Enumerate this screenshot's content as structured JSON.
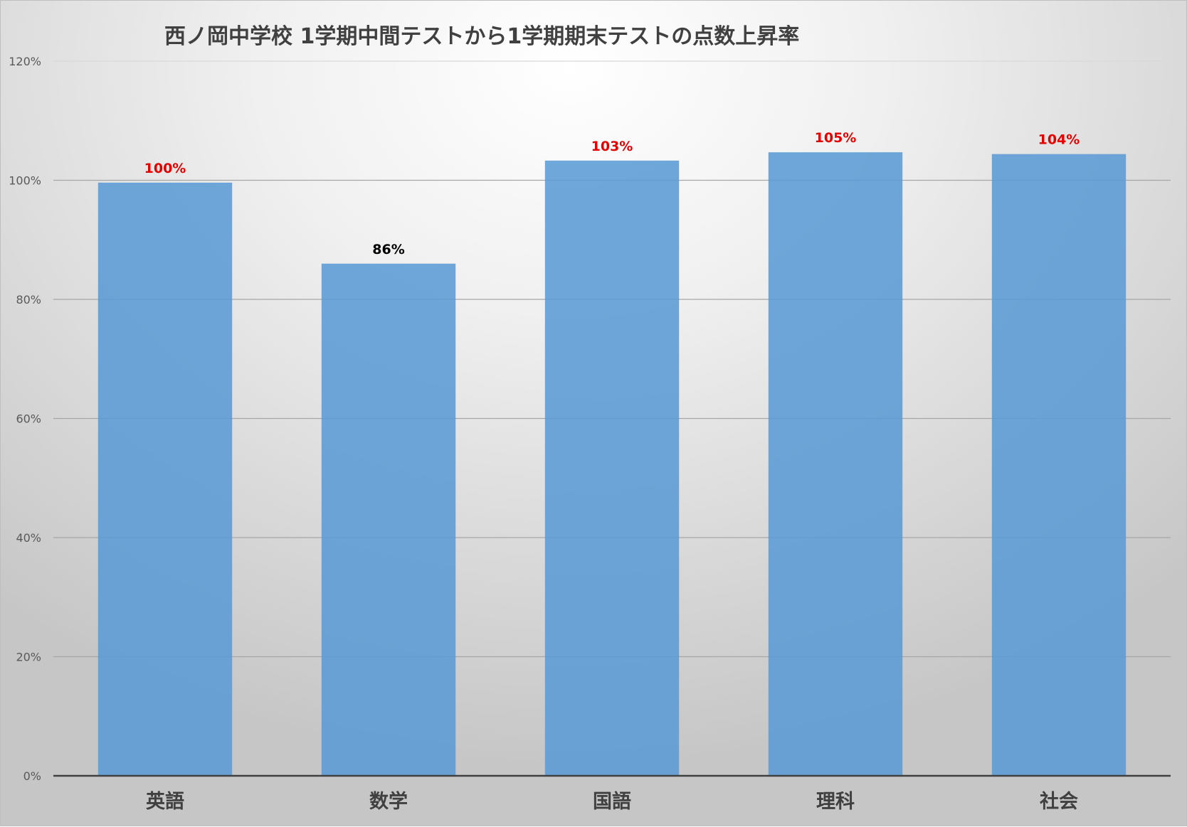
{
  "chart_data": {
    "type": "bar",
    "title": "西ノ岡中学校 1学期中間テストから1学期期末テストの点数上昇率",
    "categories": [
      "英語",
      "数学",
      "国語",
      "理科",
      "社会"
    ],
    "values": [
      99.6,
      86.0,
      103.3,
      104.7,
      104.4
    ],
    "data_labels": [
      "100%",
      "86%",
      "103%",
      "105%",
      "104%"
    ],
    "label_colors": [
      "#e60000",
      "#000000",
      "#e60000",
      "#e60000",
      "#e60000"
    ],
    "ylim": [
      0,
      120
    ],
    "yticks": [
      0,
      20,
      40,
      60,
      80,
      100,
      120
    ],
    "ytick_labels": [
      "0%",
      "20%",
      "40%",
      "60%",
      "80%",
      "100%",
      "120%"
    ],
    "xlabel": "",
    "ylabel": "",
    "grid": true,
    "legend": "none",
    "bar_color": "#5b9bd5"
  }
}
